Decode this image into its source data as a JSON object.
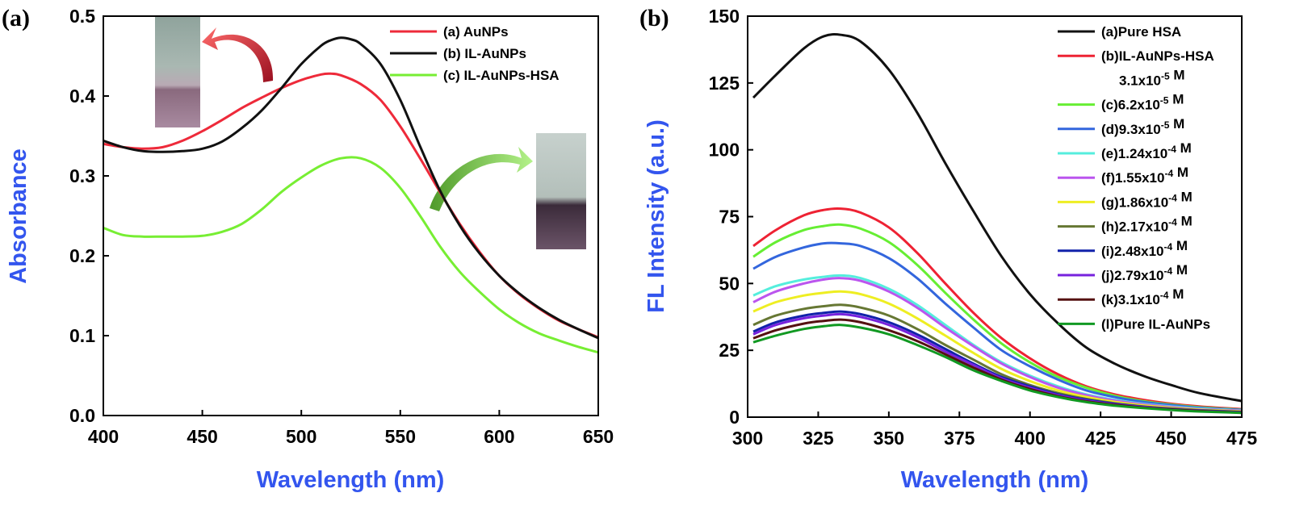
{
  "chart_data": [
    {
      "type": "line",
      "panel_label": "(a)",
      "xlabel": "Wavelength (nm)",
      "ylabel": "Absorbance",
      "xlim": [
        400,
        650
      ],
      "ylim": [
        0.0,
        0.5
      ],
      "xticks": [
        "400",
        "450",
        "500",
        "550",
        "600",
        "650"
      ],
      "yticks": [
        "0.0",
        "0.1",
        "0.2",
        "0.3",
        "0.4",
        "0.5"
      ],
      "legend_position": "top-right",
      "series": [
        {
          "name": "(a) AuNPs",
          "color": "#ee2a3a",
          "x": [
            400,
            410,
            420,
            430,
            440,
            450,
            460,
            470,
            480,
            490,
            500,
            510,
            515,
            520,
            530,
            540,
            550,
            560,
            570,
            580,
            590,
            600,
            610,
            620,
            630,
            640,
            650
          ],
          "y": [
            0.34,
            0.336,
            0.334,
            0.336,
            0.344,
            0.356,
            0.37,
            0.385,
            0.398,
            0.41,
            0.42,
            0.427,
            0.428,
            0.426,
            0.415,
            0.395,
            0.362,
            0.322,
            0.28,
            0.24,
            0.205,
            0.175,
            0.152,
            0.134,
            0.119,
            0.108,
            0.098
          ]
        },
        {
          "name": "(b) IL-AuNPs",
          "color": "#111111",
          "x": [
            400,
            410,
            420,
            430,
            440,
            450,
            460,
            470,
            480,
            490,
            500,
            510,
            515,
            520,
            525,
            530,
            540,
            550,
            560,
            570,
            580,
            590,
            600,
            610,
            620,
            630,
            640,
            650
          ],
          "y": [
            0.344,
            0.336,
            0.331,
            0.33,
            0.331,
            0.334,
            0.343,
            0.36,
            0.382,
            0.41,
            0.44,
            0.463,
            0.47,
            0.473,
            0.471,
            0.465,
            0.44,
            0.395,
            0.337,
            0.282,
            0.238,
            0.203,
            0.175,
            0.153,
            0.135,
            0.12,
            0.108,
            0.097
          ]
        },
        {
          "name": "(c) IL-AuNPs-HSA",
          "color": "#77ee33",
          "x": [
            400,
            410,
            420,
            430,
            440,
            450,
            460,
            470,
            480,
            490,
            500,
            510,
            520,
            530,
            540,
            550,
            560,
            570,
            580,
            590,
            600,
            610,
            620,
            630,
            640,
            650
          ],
          "y": [
            0.235,
            0.226,
            0.224,
            0.224,
            0.224,
            0.225,
            0.23,
            0.24,
            0.258,
            0.28,
            0.298,
            0.313,
            0.322,
            0.322,
            0.31,
            0.285,
            0.25,
            0.212,
            0.18,
            0.155,
            0.133,
            0.116,
            0.103,
            0.094,
            0.086,
            0.079
          ]
        }
      ]
    },
    {
      "type": "line",
      "panel_label": "(b)",
      "xlabel": "Wavelength (nm)",
      "ylabel": "FL Intensity (a.u.)",
      "xlim": [
        300,
        475
      ],
      "ylim": [
        0,
        150
      ],
      "xticks": [
        "300",
        "325",
        "350",
        "375",
        "400",
        "425",
        "450",
        "475"
      ],
      "yticks": [
        "0",
        "25",
        "50",
        "75",
        "100",
        "125",
        "150"
      ],
      "legend_position": "top-right",
      "x": [
        302,
        310,
        320,
        327,
        333,
        340,
        350,
        360,
        370,
        380,
        390,
        400,
        410,
        420,
        430,
        440,
        450,
        460,
        475
      ],
      "series": [
        {
          "name": "(a)Pure HSA",
          "color": "#111111",
          "label_lines": [
            "(a)Pure HSA"
          ],
          "y": [
            119.5,
            128,
            138,
            142.5,
            143,
            140.5,
            130,
            114,
            95,
            77,
            60,
            46,
            35,
            26,
            20,
            15.5,
            12,
            9,
            6
          ]
        },
        {
          "name": "(b)IL-AuNPs-HSA 3.1x10-5 M",
          "color": "#ee2233",
          "label_lines": [
            "(b)IL-AuNPs-HSA",
            "3.1x10-5 M"
          ],
          "y": [
            64,
            70,
            75.5,
            77.5,
            78,
            76.5,
            71,
            61.5,
            50,
            39,
            29.5,
            22,
            16,
            11.5,
            8.5,
            6.5,
            5,
            4,
            3
          ]
        },
        {
          "name": "(c)6.2x10-5 M",
          "color": "#66ee33",
          "label_lines": [
            "(c)6.2x10-5 M"
          ],
          "y": [
            60,
            65.5,
            70,
            71.5,
            72,
            70.5,
            65.5,
            57,
            46.5,
            36.5,
            27.5,
            20.5,
            15,
            11,
            8,
            6,
            4.7,
            3.7,
            2.8
          ]
        },
        {
          "name": "(d)9.3x10-5 M",
          "color": "#3366dd",
          "label_lines": [
            "(d)9.3x10-5 M"
          ],
          "y": [
            55.5,
            60,
            63.5,
            65,
            65,
            64,
            59.5,
            52,
            42.5,
            33.5,
            25,
            19,
            14,
            10,
            7.5,
            5.7,
            4.5,
            3.5,
            2.7
          ]
        },
        {
          "name": "(e)1.24x10-4 M",
          "color": "#55eedd",
          "label_lines": [
            "(e)1.24x10-4 M"
          ],
          "y": [
            45.5,
            49,
            51.5,
            52.5,
            53,
            52,
            48,
            42,
            34.5,
            27,
            20.5,
            15.5,
            11.5,
            8.5,
            6.5,
            5,
            4,
            3.2,
            2.5
          ]
        },
        {
          "name": "(f)1.55x10-4 M",
          "color": "#bb55ee",
          "label_lines": [
            "(f)1.55x10-4 M"
          ],
          "y": [
            43,
            47,
            50,
            51.5,
            52,
            51,
            47,
            41,
            33.5,
            26.5,
            20,
            15,
            11,
            8.2,
            6.2,
            4.8,
            3.8,
            3,
            2.4
          ]
        },
        {
          "name": "(g)1.86x10-4 M",
          "color": "#eeee22",
          "label_lines": [
            "(g)1.86x10-4 M"
          ],
          "y": [
            39.5,
            43,
            45.5,
            46.5,
            47,
            46,
            42.5,
            37,
            30.5,
            24,
            18,
            13.5,
            10,
            7.5,
            5.7,
            4.4,
            3.5,
            2.8,
            2.2
          ]
        },
        {
          "name": "(h)2.17x10-4 M",
          "color": "#667733",
          "label_lines": [
            "(h)2.17x10-4 M"
          ],
          "y": [
            34.5,
            38,
            40.5,
            41.5,
            42,
            41,
            38,
            33,
            27,
            21.5,
            16,
            12,
            9,
            6.8,
            5.2,
            4,
            3.2,
            2.6,
            2
          ]
        },
        {
          "name": "(i)2.48x10-4 M",
          "color": "#1122aa",
          "label_lines": [
            "(i)2.48x10-4 M"
          ],
          "y": [
            32,
            35.5,
            38,
            39,
            39.5,
            38.5,
            35.5,
            31,
            25.5,
            20,
            15,
            11.5,
            8.5,
            6.5,
            5,
            3.9,
            3.1,
            2.5,
            1.9
          ]
        },
        {
          "name": "(j)2.79x10-4 M",
          "color": "#7722dd",
          "label_lines": [
            "(j)2.79x10-4 M"
          ],
          "y": [
            31,
            34.5,
            37,
            38,
            38.5,
            37.5,
            34.5,
            30,
            24.5,
            19.5,
            14.5,
            11,
            8.2,
            6.2,
            4.8,
            3.8,
            3,
            2.4,
            1.8
          ]
        },
        {
          "name": "(k)3.1x10-4 M",
          "color": "#551111",
          "label_lines": [
            "(k)3.1x10-4 M"
          ],
          "y": [
            29.5,
            32.5,
            35,
            36,
            36.5,
            35.5,
            32.5,
            28.5,
            23.5,
            18.5,
            14,
            10.5,
            7.8,
            5.9,
            4.6,
            3.6,
            2.9,
            2.3,
            1.7
          ]
        },
        {
          "name": "(l)Pure IL-AuNPs",
          "color": "#119922",
          "label_lines": [
            "(l)Pure IL-AuNPs"
          ],
          "y": [
            28,
            30.5,
            33,
            34,
            34.5,
            33.5,
            31,
            27,
            22.5,
            17.5,
            13.5,
            10,
            7.5,
            5.6,
            4.3,
            3.4,
            2.7,
            2.1,
            1.6
          ]
        }
      ]
    }
  ]
}
